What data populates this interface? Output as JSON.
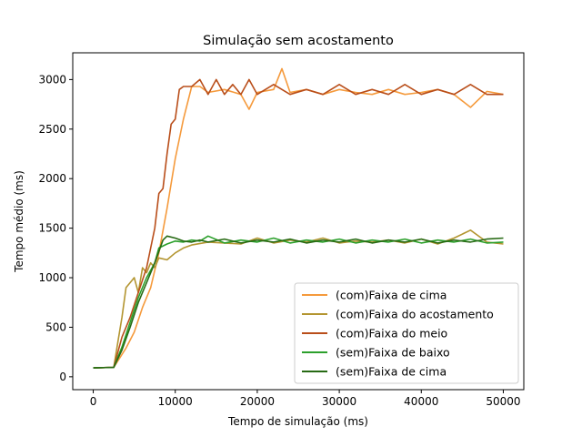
{
  "chart_data": {
    "type": "line",
    "title": "Simulação sem acostamento",
    "xlabel": "Tempo de simulação (ms)",
    "ylabel": "Tempo médio (ms)",
    "xlim": [
      -2500,
      52500
    ],
    "ylim": [
      -130,
      3270
    ],
    "xticks": [
      0,
      10000,
      20000,
      30000,
      40000,
      50000
    ],
    "yticks": [
      0,
      500,
      1000,
      1500,
      2000,
      2500,
      3000
    ],
    "grid": false,
    "legend_position": "lower-right",
    "series": [
      {
        "name": "(com)Faixa de cima",
        "color": "#f59a3c",
        "x": [
          0,
          2500,
          4000,
          5000,
          6000,
          7000,
          8000,
          9000,
          10000,
          11000,
          12000,
          13000,
          14000,
          16000,
          18000,
          19000,
          20000,
          22000,
          23000,
          24000,
          26000,
          28000,
          30000,
          32000,
          34000,
          36000,
          38000,
          40000,
          42000,
          44000,
          46000,
          48000,
          50000
        ],
        "y": [
          90,
          95,
          290,
          450,
          700,
          900,
          1250,
          1700,
          2200,
          2600,
          2930,
          2930,
          2870,
          2900,
          2850,
          2700,
          2870,
          2900,
          3110,
          2870,
          2900,
          2850,
          2900,
          2870,
          2850,
          2900,
          2850,
          2870,
          2900,
          2850,
          2720,
          2880,
          2850
        ]
      },
      {
        "name": "(com)Faixa do acostamento",
        "color": "#b39530",
        "x": [
          0,
          2500,
          3000,
          3500,
          4000,
          4500,
          5000,
          5500,
          6000,
          6500,
          7000,
          7500,
          8000,
          9000,
          10000,
          11000,
          12000,
          14000,
          16000,
          18000,
          20000,
          22000,
          24000,
          26000,
          28000,
          30000,
          32000,
          34000,
          36000,
          38000,
          40000,
          42000,
          44000,
          46000,
          48000,
          50000
        ],
        "y": [
          90,
          95,
          350,
          600,
          900,
          950,
          1000,
          850,
          1100,
          1050,
          1150,
          1100,
          1200,
          1180,
          1250,
          1300,
          1330,
          1360,
          1350,
          1340,
          1400,
          1350,
          1380,
          1360,
          1400,
          1350,
          1370,
          1360,
          1380,
          1350,
          1390,
          1340,
          1400,
          1480,
          1360,
          1340
        ]
      },
      {
        "name": "(com)Faixa do meio",
        "color": "#b94e1a",
        "x": [
          0,
          2500,
          3500,
          4500,
          5500,
          6500,
          7000,
          7500,
          8000,
          8500,
          9000,
          9500,
          10000,
          10500,
          11000,
          12000,
          13000,
          14000,
          15000,
          16000,
          17000,
          18000,
          19000,
          20000,
          22000,
          24000,
          26000,
          28000,
          30000,
          32000,
          34000,
          36000,
          38000,
          40000,
          42000,
          44000,
          46000,
          48000,
          50000
        ],
        "y": [
          90,
          95,
          400,
          600,
          850,
          1100,
          1300,
          1500,
          1850,
          1900,
          2250,
          2550,
          2600,
          2900,
          2930,
          2930,
          3000,
          2850,
          3000,
          2850,
          2950,
          2850,
          3000,
          2850,
          2950,
          2850,
          2900,
          2850,
          2950,
          2850,
          2900,
          2850,
          2950,
          2850,
          2900,
          2850,
          2950,
          2850,
          2850
        ]
      },
      {
        "name": "(sem)Faixa de baixo",
        "color": "#2ca02c",
        "x": [
          0,
          2500,
          3500,
          4500,
          5500,
          6500,
          7500,
          8000,
          9000,
          10000,
          11000,
          12000,
          13000,
          14000,
          16000,
          18000,
          20000,
          22000,
          24000,
          26000,
          28000,
          30000,
          32000,
          34000,
          36000,
          38000,
          40000,
          42000,
          44000,
          46000,
          48000,
          50000
        ],
        "y": [
          90,
          95,
          300,
          550,
          800,
          1000,
          1150,
          1300,
          1340,
          1370,
          1360,
          1380,
          1370,
          1420,
          1350,
          1380,
          1360,
          1400,
          1350,
          1380,
          1360,
          1390,
          1350,
          1380,
          1360,
          1390,
          1350,
          1380,
          1360,
          1390,
          1350,
          1360
        ]
      },
      {
        "name": "(sem)Faixa de cima",
        "color": "#276a14",
        "x": [
          0,
          2500,
          3500,
          4500,
          5500,
          6500,
          7500,
          8500,
          9000,
          10000,
          11000,
          12000,
          13000,
          14000,
          16000,
          18000,
          20000,
          22000,
          24000,
          26000,
          28000,
          30000,
          32000,
          34000,
          36000,
          38000,
          40000,
          42000,
          44000,
          46000,
          48000,
          50000
        ],
        "y": [
          90,
          95,
          270,
          500,
          750,
          950,
          1150,
          1380,
          1420,
          1400,
          1370,
          1360,
          1380,
          1360,
          1390,
          1350,
          1380,
          1360,
          1390,
          1350,
          1380,
          1360,
          1390,
          1350,
          1380,
          1360,
          1390,
          1350,
          1380,
          1360,
          1390,
          1400
        ]
      }
    ]
  }
}
